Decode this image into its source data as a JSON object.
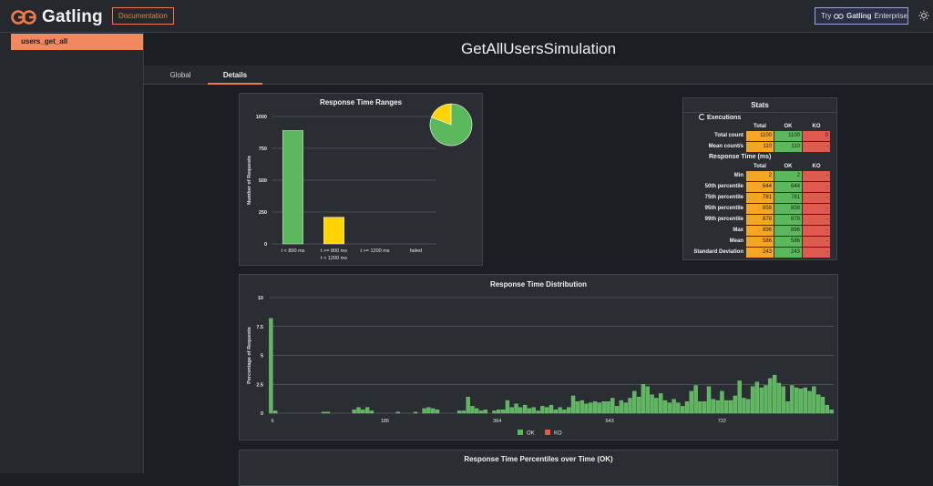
{
  "app": {
    "logo_text": "Gatling",
    "documentation_label": "Documentation",
    "try_label": "Try",
    "enterprise_brand": "Gatling",
    "enterprise_label": "Enterprise",
    "theme_icon": "sun-icon"
  },
  "sidebar": {
    "items": [
      {
        "label": "users_get_all"
      }
    ]
  },
  "page": {
    "title": "GetAllUsersSimulation"
  },
  "tabs": [
    {
      "label": "Global"
    },
    {
      "label": "Details"
    }
  ],
  "colors": {
    "accent": "#f07a4a",
    "ok": "#5cb85c",
    "ko": "#e05a4f",
    "total": "#f5a623",
    "warn": "#ffd400"
  },
  "chart_data": [
    {
      "type": "bar",
      "title": "Response Time Ranges",
      "ylabel": "Number of Requests",
      "ylim": [
        0,
        1000
      ],
      "yticks": [
        0,
        250,
        500,
        750,
        1000
      ],
      "categories": [
        "t < 800 ms",
        "t >= 800 ms t < 1200 ms",
        "t >= 1200 ms",
        "failed"
      ],
      "category_lines": [
        [
          "t < 800 ms"
        ],
        [
          "t >= 800 ms",
          "t < 1200 ms"
        ],
        [
          "t >= 1200 ms"
        ],
        [
          "failed"
        ]
      ],
      "values": [
        890,
        210,
        0,
        0
      ],
      "pie": [
        {
          "value": 890,
          "color": "#5cb85c"
        },
        {
          "value": 210,
          "color": "#ffd400"
        }
      ]
    },
    {
      "type": "bar",
      "title": "Response Time Distribution",
      "ylabel": "Percentage of Requests",
      "ylim": [
        0,
        10
      ],
      "yticks": [
        0,
        2.5,
        5,
        7.5,
        10
      ],
      "xticks": [
        6,
        185,
        364,
        543,
        722
      ],
      "xlim": [
        0,
        900
      ],
      "legend": [
        {
          "name": "OK",
          "color": "#5cb85c"
        },
        {
          "name": "KO",
          "color": "#e05a4f"
        }
      ],
      "series": [
        {
          "name": "OK",
          "values": [
            8.2,
            0.2,
            0,
            0,
            0,
            0,
            0,
            0,
            0,
            0,
            0,
            0,
            0.1,
            0.1,
            0,
            0,
            0,
            0,
            0,
            0.3,
            0.5,
            0.3,
            0.5,
            0.2,
            0,
            0,
            0,
            0,
            0,
            0.1,
            0,
            0,
            0,
            0.1,
            0,
            0.4,
            0.5,
            0.4,
            0.3,
            0,
            0,
            0,
            0,
            0.2,
            0.2,
            1.4,
            0.6,
            0.4,
            0.2,
            0.3,
            0,
            0.2,
            0.3,
            0.3,
            1.1,
            0.5,
            0.8,
            0.5,
            0.7,
            0.4,
            0.5,
            0.2,
            0.6,
            0.5,
            0.7,
            0.3,
            0.5,
            0.3,
            0.5,
            1.5,
            1.0,
            1.1,
            0.8,
            0.9,
            1.0,
            0.9,
            1.0,
            1.0,
            1.3,
            0.6,
            1.1,
            0.9,
            1.3,
            1.9,
            1.4,
            2.5,
            2.3,
            1.6,
            1.3,
            1.7,
            1.1,
            0.9,
            1.2,
            0.9,
            0.6,
            1.0,
            1.9,
            2.4,
            1.0,
            1.0,
            2.3,
            1.2,
            1.1,
            1.9,
            1.1,
            1.1,
            1.5,
            2.8,
            1.3,
            1.2,
            2.3,
            2.7,
            2.2,
            2.4,
            3.0,
            3.3,
            2.6,
            2.3,
            1.0,
            2.4,
            2.2,
            2.1,
            2.2,
            1.9,
            2.3,
            1.6,
            1.4,
            0.7,
            0.3
          ]
        },
        {
          "name": "KO",
          "values": []
        }
      ]
    },
    {
      "type": "line",
      "title": "Response Time Percentiles over Time (OK)"
    }
  ],
  "stats": {
    "title": "Stats",
    "executions_label": "Executions",
    "response_time_label": "Response Time (ms)",
    "col_total": "Total",
    "col_ok": "OK",
    "col_ko": "KO",
    "executions": [
      {
        "label": "Total count",
        "total": "1100",
        "ok": "1100",
        "ko": "0"
      },
      {
        "label": "Mean count/s",
        "total": "110",
        "ok": "110",
        "ko": "-"
      }
    ],
    "response_time": [
      {
        "label": "Min",
        "total": "2",
        "ok": "2",
        "ko": "-"
      },
      {
        "label": "50th percentile",
        "total": "644",
        "ok": "644",
        "ko": "-"
      },
      {
        "label": "75th percentile",
        "total": "781",
        "ok": "781",
        "ko": "-"
      },
      {
        "label": "95th percentile",
        "total": "858",
        "ok": "858",
        "ko": "-"
      },
      {
        "label": "99th percentile",
        "total": "878",
        "ok": "878",
        "ko": "-"
      },
      {
        "label": "Max",
        "total": "896",
        "ok": "896",
        "ko": "-"
      },
      {
        "label": "Mean",
        "total": "586",
        "ok": "586",
        "ko": "-"
      },
      {
        "label": "Standard Deviation",
        "total": "243",
        "ok": "243",
        "ko": "-"
      }
    ]
  }
}
